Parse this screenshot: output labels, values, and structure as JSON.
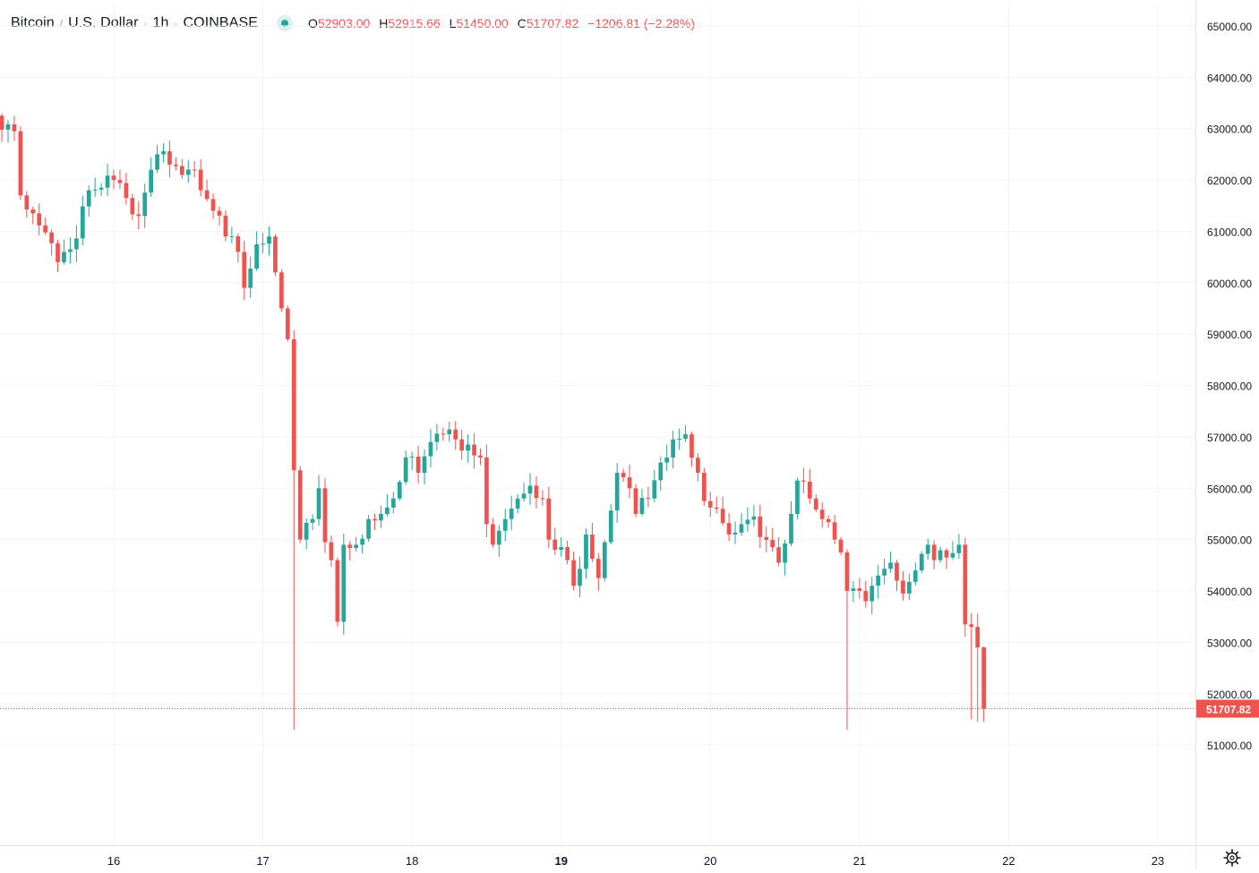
{
  "header": {
    "title_parts": [
      "Bitcoin",
      "/",
      "U.S. Dollar",
      "1h",
      "COINBASE"
    ],
    "ohlc": {
      "o_label": "O",
      "o": "52903.00",
      "h_label": "H",
      "h": "52915.66",
      "l_label": "L",
      "l": "51450.00",
      "c_label": "C",
      "c": "51707.82",
      "change": "−1206.81 (−2.28%)"
    }
  },
  "colors": {
    "up": "#26a69a",
    "down": "#ef5350",
    "grid": "#f0f3fa",
    "axis_text": "#131722",
    "price_line": "#ef5350"
  },
  "icons": {
    "settings": "gear-icon",
    "status": "market-status-dot"
  },
  "chart_data": {
    "type": "candlestick",
    "symbol": "Bitcoin / U.S. Dollar",
    "interval": "1h",
    "exchange": "COINBASE",
    "y_axis": {
      "ticks": [
        51000,
        52000,
        53000,
        54000,
        55000,
        56000,
        57000,
        58000,
        59000,
        60000,
        61000,
        62000,
        63000,
        64000,
        65000
      ],
      "tick_labels": [
        "51000.00",
        "52000.00",
        "53000.00",
        "54000.00",
        "55000.00",
        "56000.00",
        "57000.00",
        "58000.00",
        "59000.00",
        "60000.00",
        "61000.00",
        "62000.00",
        "63000.00",
        "64000.00",
        "65000.00"
      ],
      "range": [
        49050,
        65400
      ],
      "side": "right"
    },
    "x_axis": {
      "labels": [
        "16",
        "17",
        "18",
        "19",
        "20",
        "21",
        "22",
        "23"
      ],
      "bold_labels": [
        "19"
      ],
      "label_bar_index": [
        24,
        48,
        72,
        96,
        120,
        144,
        168,
        192
      ],
      "bar_index_range": [
        -18,
        193.5
      ]
    },
    "last_price": "51707.82",
    "last_price_value": 51707.82,
    "grid": true,
    "anchors": [
      [
        -18,
        63280
      ],
      [
        -16,
        62850
      ],
      [
        -14,
        62600
      ],
      [
        -12,
        62400
      ],
      [
        -10,
        62080
      ],
      [
        -8,
        62820
      ],
      [
        -6,
        62780
      ],
      [
        -4,
        62760
      ],
      [
        -2,
        63000
      ],
      [
        0,
        63400
      ],
      [
        2,
        63440
      ],
      [
        4,
        63420
      ],
      [
        6,
        62980
      ],
      [
        8,
        62950
      ],
      [
        9,
        61700
      ],
      [
        11,
        61350
      ],
      [
        13,
        60980
      ],
      [
        15,
        60400
      ],
      [
        17,
        60650
      ],
      [
        20,
        61800
      ],
      [
        22,
        61850
      ],
      [
        24,
        62000
      ],
      [
        26,
        61650
      ],
      [
        28,
        61300
      ],
      [
        30,
        62200
      ],
      [
        31,
        62500
      ],
      [
        33,
        62300
      ],
      [
        35,
        62100
      ],
      [
        37,
        62200
      ],
      [
        38,
        61800
      ],
      [
        40,
        61400
      ],
      [
        42,
        60900
      ],
      [
        44,
        60600
      ],
      [
        45,
        59900
      ],
      [
        47,
        60750
      ],
      [
        49,
        60900
      ],
      [
        50,
        60200
      ],
      [
        51,
        59500
      ],
      [
        52,
        58900
      ],
      [
        53,
        56350
      ],
      [
        54,
        55000
      ],
      [
        56,
        55400
      ],
      [
        57,
        56000
      ],
      [
        58,
        54950
      ],
      [
        59,
        54600
      ],
      [
        60,
        53400
      ],
      [
        61,
        54900
      ],
      [
        63,
        54900
      ],
      [
        65,
        55400
      ],
      [
        67,
        55500
      ],
      [
        69,
        55800
      ],
      [
        71,
        56600
      ],
      [
        73,
        56300
      ],
      [
        75,
        56900
      ],
      [
        77,
        57050
      ],
      [
        79,
        56950
      ],
      [
        81,
        56850
      ],
      [
        83,
        56600
      ],
      [
        84,
        55300
      ],
      [
        85,
        54900
      ],
      [
        87,
        55400
      ],
      [
        89,
        55800
      ],
      [
        91,
        56050
      ],
      [
        93,
        55800
      ],
      [
        94,
        55000
      ],
      [
        95,
        54800
      ],
      [
        97,
        54600
      ],
      [
        98,
        54100
      ],
      [
        100,
        55100
      ],
      [
        102,
        54250
      ],
      [
        103,
        54950
      ],
      [
        105,
        56300
      ],
      [
        107,
        56000
      ],
      [
        108,
        55500
      ],
      [
        110,
        55800
      ],
      [
        112,
        56500
      ],
      [
        114,
        56950
      ],
      [
        116,
        57050
      ],
      [
        118,
        56300
      ],
      [
        119,
        55750
      ],
      [
        121,
        55600
      ],
      [
        123,
        55100
      ],
      [
        125,
        55300
      ],
      [
        127,
        55450
      ],
      [
        128,
        55050
      ],
      [
        130,
        54850
      ],
      [
        131,
        54550
      ],
      [
        133,
        55500
      ],
      [
        134,
        56150
      ],
      [
        136,
        55800
      ],
      [
        138,
        55400
      ],
      [
        140,
        55000
      ],
      [
        141,
        54750
      ],
      [
        142,
        54000
      ],
      [
        144,
        54000
      ],
      [
        145,
        53800
      ],
      [
        147,
        54300
      ],
      [
        149,
        54550
      ],
      [
        150,
        54200
      ],
      [
        151,
        53950
      ],
      [
        153,
        54400
      ],
      [
        155,
        54900
      ],
      [
        156,
        54600
      ],
      [
        158,
        54650
      ],
      [
        160,
        54900
      ],
      [
        161,
        53350
      ],
      [
        162,
        53300
      ],
      [
        163,
        52900
      ],
      [
        164,
        51707.82
      ]
    ],
    "wick_spikes": [
      {
        "bar": 53,
        "low": 51300
      },
      {
        "bar": 142,
        "low": 51300
      },
      {
        "bar": 162,
        "low": 51500
      },
      {
        "bar": 163,
        "low": 51450
      }
    ],
    "ohlc_last_bar": {
      "open": 52903.0,
      "high": 52915.66,
      "low": 51450.0,
      "close": 51707.82
    }
  }
}
